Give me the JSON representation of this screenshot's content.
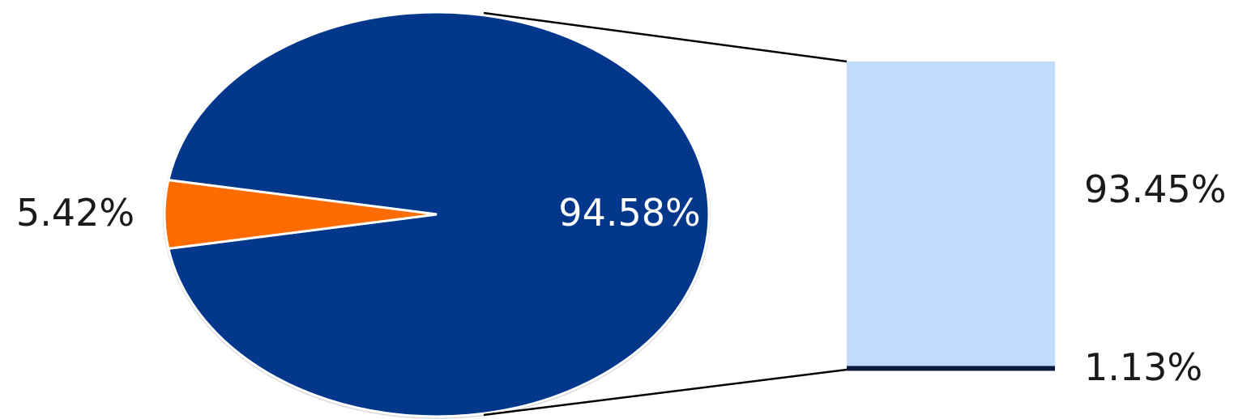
{
  "chart_data": {
    "type": "pie",
    "subtype": "bar-of-pie",
    "pie": {
      "slices": [
        {
          "label": "94.58%",
          "value": 94.58,
          "color": "#03378b"
        },
        {
          "label": "5.42%",
          "value": 5.42,
          "color": "#fe6b00"
        }
      ]
    },
    "bar": {
      "segments": [
        {
          "label": "93.45%",
          "value": 93.45,
          "color": "#bfdcff"
        },
        {
          "label": "1.13%",
          "value": 1.13,
          "color": "#0b1a3a"
        }
      ]
    },
    "connector_color": "#000000",
    "label_colors": {
      "inside": "#ffffff",
      "outside": "#1a1a1a"
    }
  }
}
